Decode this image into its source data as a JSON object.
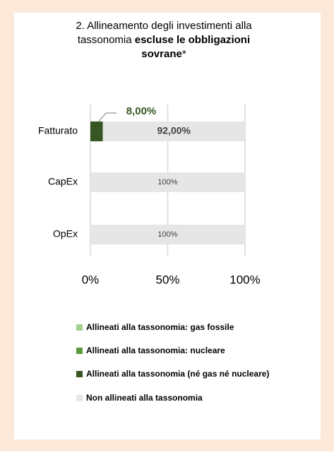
{
  "chart_data": {
    "type": "stacked_barh",
    "title": [
      "2. Allineamento degli investimenti alla",
      "tassonomia ",
      "escluse le obbligazioni",
      "sovrane",
      "*"
    ],
    "categories": [
      "Fatturato",
      "CapEx",
      "OpEx"
    ],
    "series": [
      {
        "name": "Allineati alla tassonomia: gas fossile",
        "color": "#a3d18f",
        "values": [
          0,
          0,
          0
        ]
      },
      {
        "name": "Allineati alla tassonomia: nucleare",
        "color": "#5b9a3c",
        "values": [
          0,
          0,
          0
        ]
      },
      {
        "name": "Allineati alla tassonomia (né gas né nucleare)",
        "color": "#375623",
        "values": [
          8,
          0,
          0
        ],
        "value_labels": [
          "8,00%",
          null,
          null
        ]
      },
      {
        "name": "Non allineati alla tassonomia",
        "color": "#e6e6e6",
        "values": [
          92,
          100,
          100
        ],
        "value_labels": [
          "92,00%",
          "100%",
          "100%"
        ]
      }
    ],
    "xlim": [
      0,
      100
    ],
    "xticks": [
      {
        "value": 0,
        "label": "0%"
      },
      {
        "value": 50,
        "label": "50%"
      },
      {
        "value": 100,
        "label": "100%"
      }
    ],
    "grid": true
  }
}
